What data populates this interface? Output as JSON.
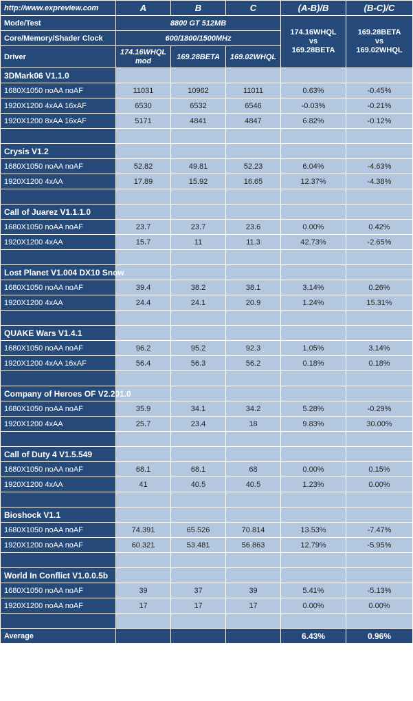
{
  "header": {
    "url": "http://www.expreview.com",
    "col_a": "A",
    "col_b": "B",
    "col_c": "C",
    "col_d": "(A-B)/B",
    "col_e": "(B-C)/C"
  },
  "rows_meta": {
    "mode_label": "Mode/Test",
    "mode_value": "8800 GT 512MB",
    "clock_label": "Core/Memory/Shader Clock",
    "clock_value": "600/1800/1500MHz",
    "driver_label": "Driver",
    "driver_a": "174.16WHQL mod",
    "driver_b": "169.28BETA",
    "driver_c": "169.02WHQL",
    "cmp1": "174.16WHQL vs 169.28BETA",
    "cmp2": "169.28BETA vs 169.02WHQL"
  },
  "sections": [
    {
      "title": "3DMark06 V1.1.0",
      "rows": [
        {
          "label": "1680X1050 noAA noAF",
          "a": "11031",
          "b": "10962",
          "c": "11011",
          "d": "0.63%",
          "e": "-0.45%"
        },
        {
          "label": "1920X1200 4xAA 16xAF",
          "a": "6530",
          "b": "6532",
          "c": "6546",
          "d": "-0.03%",
          "e": "-0.21%"
        },
        {
          "label": "1920X1200 8xAA 16xAF",
          "a": "5171",
          "b": "4841",
          "c": "4847",
          "d": "6.82%",
          "e": "-0.12%"
        }
      ]
    },
    {
      "title": "Crysis V1.2",
      "rows": [
        {
          "label": "1680X1050 noAA noAF",
          "a": "52.82",
          "b": "49.81",
          "c": "52.23",
          "d": "6.04%",
          "e": "-4.63%"
        },
        {
          "label": "1920X1200 4xAA",
          "a": "17.89",
          "b": "15.92",
          "c": "16.65",
          "d": "12.37%",
          "e": "-4.38%"
        }
      ]
    },
    {
      "title": "Call of Juarez V1.1.1.0",
      "rows": [
        {
          "label": "1680X1050 noAA noAF",
          "a": "23.7",
          "b": "23.7",
          "c": "23.6",
          "d": "0.00%",
          "e": "0.42%"
        },
        {
          "label": "1920X1200 4xAA",
          "a": "15.7",
          "b": "11",
          "c": "11.3",
          "d": "42.73%",
          "e": "-2.65%"
        }
      ]
    },
    {
      "title": "Lost Planet V1.004 DX10 Snow",
      "rows": [
        {
          "label": "1680X1050 noAA noAF",
          "a": "39.4",
          "b": "38.2",
          "c": "38.1",
          "d": "3.14%",
          "e": "0.26%"
        },
        {
          "label": "1920X1200 4xAA",
          "a": "24.4",
          "b": "24.1",
          "c": "20.9",
          "d": "1.24%",
          "e": "15.31%"
        }
      ]
    },
    {
      "title": "QUAKE Wars V1.4.1",
      "rows": [
        {
          "label": "1680X1050 noAA noAF",
          "a": "96.2",
          "b": "95.2",
          "c": "92.3",
          "d": "1.05%",
          "e": "3.14%"
        },
        {
          "label": "1920X1200 4xAA 16xAF",
          "a": "56.4",
          "b": "56.3",
          "c": "56.2",
          "d": "0.18%",
          "e": "0.18%"
        }
      ]
    },
    {
      "title": "Company of Heroes OF V2.201.0",
      "rows": [
        {
          "label": "1680X1050 noAA noAF",
          "a": "35.9",
          "b": "34.1",
          "c": "34.2",
          "d": "5.28%",
          "e": "-0.29%"
        },
        {
          "label": "1920X1200 4xAA",
          "a": "25.7",
          "b": "23.4",
          "c": "18",
          "d": "9.83%",
          "e": "30.00%"
        }
      ]
    },
    {
      "title": "Call of Duty 4 V1.5.549",
      "rows": [
        {
          "label": "1680X1050 noAA noAF",
          "a": "68.1",
          "b": "68.1",
          "c": "68",
          "d": "0.00%",
          "e": "0.15%"
        },
        {
          "label": "1920X1200 4xAA",
          "a": "41",
          "b": "40.5",
          "c": "40.5",
          "d": "1.23%",
          "e": "0.00%"
        }
      ]
    },
    {
      "title": "Bioshock V1.1",
      "rows": [
        {
          "label": "1680X1050 noAA noAF",
          "a": "74.391",
          "b": "65.526",
          "c": "70.814",
          "d": "13.53%",
          "e": "-7.47%"
        },
        {
          "label": "1920X1200 noAA noAF",
          "a": "60.321",
          "b": "53.481",
          "c": "56.863",
          "d": "12.79%",
          "e": "-5.95%"
        }
      ]
    },
    {
      "title": "World In Conflict V1.0.0.5b",
      "rows": [
        {
          "label": "1680X1050 noAA noAF",
          "a": "39",
          "b": "37",
          "c": "39",
          "d": "5.41%",
          "e": "-5.13%"
        },
        {
          "label": "1920X1200 noAA noAF",
          "a": "17",
          "b": "17",
          "c": "17",
          "d": "0.00%",
          "e": "0.00%"
        }
      ]
    }
  ],
  "average": {
    "label": "Average",
    "d": "6.43%",
    "e": "0.96%"
  }
}
